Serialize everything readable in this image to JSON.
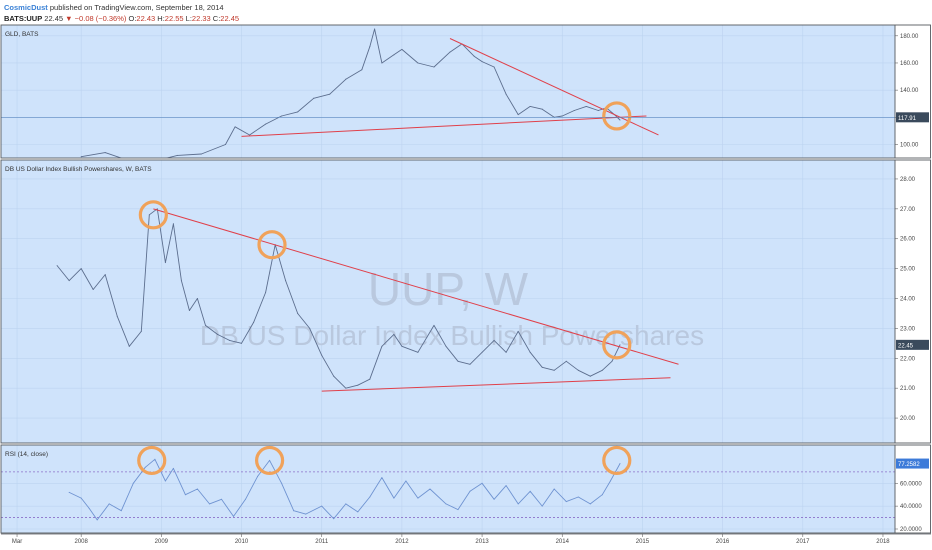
{
  "header": {
    "author": "CosmicDust",
    "published": "published on TradingView.com, September 18, 2014",
    "symbol": "BATS:UUP",
    "last": "22.45",
    "change": "▼ −0.08 (−0.36%)",
    "open_label": "O:",
    "open": "22.43",
    "high_label": "H:",
    "high": "22.55",
    "low_label": "L:",
    "low": "22.33",
    "close_label": "C:",
    "close": "22.45"
  },
  "watermark": {
    "symbol": "UUP, W",
    "name": "DB US Dollar Index Bullish Powershares"
  },
  "colors": {
    "background": "#cfe3fb",
    "series": "#5c6e8e",
    "trendline": "#e0404a",
    "circle": "#f0a25a",
    "rsi_line": "#6f93d1",
    "rsi_band": "#8b6fc9",
    "badge": "#3a4a5c",
    "rsi_badge": "#3d7bd9"
  },
  "chart_data": [
    {
      "type": "line",
      "pane": "GLD",
      "title": "GLD, BATS",
      "last_label": "117.91",
      "yticks": [
        100,
        120,
        140,
        160,
        180
      ],
      "ytick_labels": [
        "100.00",
        "120.00",
        "140.00",
        "160.00",
        "180.00"
      ],
      "ylim": [
        93,
        185
      ],
      "points": [
        [
          2008.0,
          91
        ],
        [
          2008.3,
          94
        ],
        [
          2008.6,
          88
        ],
        [
          2008.8,
          85
        ],
        [
          2009.0,
          89
        ],
        [
          2009.2,
          92
        ],
        [
          2009.5,
          93
        ],
        [
          2009.8,
          100
        ],
        [
          2009.92,
          113
        ],
        [
          2010.1,
          107
        ],
        [
          2010.3,
          115
        ],
        [
          2010.5,
          121
        ],
        [
          2010.7,
          124
        ],
        [
          2010.9,
          134
        ],
        [
          2011.1,
          137
        ],
        [
          2011.3,
          148
        ],
        [
          2011.5,
          155
        ],
        [
          2011.6,
          172
        ],
        [
          2011.66,
          185
        ],
        [
          2011.75,
          160
        ],
        [
          2011.9,
          166
        ],
        [
          2012.0,
          170
        ],
        [
          2012.2,
          160
        ],
        [
          2012.4,
          157
        ],
        [
          2012.6,
          168
        ],
        [
          2012.75,
          174
        ],
        [
          2012.9,
          165
        ],
        [
          2013.0,
          161
        ],
        [
          2013.15,
          157
        ],
        [
          2013.3,
          137
        ],
        [
          2013.45,
          122
        ],
        [
          2013.6,
          128
        ],
        [
          2013.75,
          126
        ],
        [
          2013.9,
          120
        ],
        [
          2014.0,
          121
        ],
        [
          2014.15,
          125
        ],
        [
          2014.3,
          128
        ],
        [
          2014.45,
          125
        ],
        [
          2014.55,
          127
        ],
        [
          2014.65,
          122
        ],
        [
          2014.72,
          118
        ]
      ],
      "trendlines": [
        {
          "x1": 2010.0,
          "y1": 106,
          "x2": 2015.05,
          "y2": 121
        },
        {
          "x1": 2012.6,
          "y1": 178,
          "x2": 2015.2,
          "y2": 107
        }
      ],
      "circles": [
        {
          "x": 2014.68,
          "y": 121
        }
      ]
    },
    {
      "type": "line",
      "pane": "UUP",
      "title": "DB US Dollar Index Bullish Powershares, W, BATS",
      "last_label": "22.45",
      "yticks": [
        20,
        21,
        22,
        23,
        24,
        25,
        26,
        27,
        28
      ],
      "ytick_labels": [
        "20.00",
        "21.00",
        "22.00",
        "23.00",
        "24.00",
        "25.00",
        "26.00",
        "27.00",
        "28.00"
      ],
      "ylim": [
        19.3,
        28.5
      ],
      "points": [
        [
          2007.7,
          25.1
        ],
        [
          2007.85,
          24.6
        ],
        [
          2008.0,
          25.0
        ],
        [
          2008.15,
          24.3
        ],
        [
          2008.3,
          24.8
        ],
        [
          2008.45,
          23.4
        ],
        [
          2008.6,
          22.4
        ],
        [
          2008.75,
          22.9
        ],
        [
          2008.85,
          26.8
        ],
        [
          2008.95,
          27.0
        ],
        [
          2009.05,
          25.2
        ],
        [
          2009.15,
          26.5
        ],
        [
          2009.25,
          24.6
        ],
        [
          2009.35,
          23.6
        ],
        [
          2009.45,
          24.0
        ],
        [
          2009.55,
          23.1
        ],
        [
          2009.7,
          22.8
        ],
        [
          2009.85,
          22.6
        ],
        [
          2010.0,
          22.5
        ],
        [
          2010.15,
          23.2
        ],
        [
          2010.3,
          24.2
        ],
        [
          2010.42,
          25.8
        ],
        [
          2010.55,
          24.6
        ],
        [
          2010.7,
          23.5
        ],
        [
          2010.85,
          23.0
        ],
        [
          2011.0,
          22.1
        ],
        [
          2011.15,
          21.4
        ],
        [
          2011.3,
          21.0
        ],
        [
          2011.45,
          21.1
        ],
        [
          2011.6,
          21.3
        ],
        [
          2011.75,
          22.4
        ],
        [
          2011.9,
          22.8
        ],
        [
          2012.0,
          22.4
        ],
        [
          2012.2,
          22.2
        ],
        [
          2012.4,
          23.1
        ],
        [
          2012.55,
          22.4
        ],
        [
          2012.7,
          21.9
        ],
        [
          2012.85,
          21.8
        ],
        [
          2013.0,
          22.2
        ],
        [
          2013.15,
          22.6
        ],
        [
          2013.3,
          22.2
        ],
        [
          2013.45,
          22.9
        ],
        [
          2013.6,
          22.2
        ],
        [
          2013.75,
          21.7
        ],
        [
          2013.9,
          21.6
        ],
        [
          2014.05,
          21.9
        ],
        [
          2014.2,
          21.6
        ],
        [
          2014.35,
          21.4
        ],
        [
          2014.5,
          21.6
        ],
        [
          2014.62,
          21.9
        ],
        [
          2014.72,
          22.45
        ]
      ],
      "trendlines": [
        {
          "x1": 2008.9,
          "y1": 27.0,
          "x2": 2015.45,
          "y2": 21.8
        },
        {
          "x1": 2011.0,
          "y1": 20.9,
          "x2": 2015.35,
          "y2": 21.35
        }
      ],
      "circles": [
        {
          "x": 2008.9,
          "y": 26.8
        },
        {
          "x": 2010.38,
          "y": 25.8
        },
        {
          "x": 2014.68,
          "y": 22.45
        }
      ]
    },
    {
      "type": "line",
      "pane": "RSI",
      "title": "RSI (14, close)",
      "last_label": "77.2582",
      "yticks": [
        20,
        40,
        60
      ],
      "ytick_labels": [
        "20.0000",
        "40.0000",
        "60.0000"
      ],
      "ylim": [
        20,
        90
      ],
      "bands": [
        70,
        30
      ],
      "points": [
        [
          2007.85,
          52
        ],
        [
          2008.0,
          47
        ],
        [
          2008.1,
          38
        ],
        [
          2008.2,
          28
        ],
        [
          2008.35,
          42
        ],
        [
          2008.5,
          36
        ],
        [
          2008.65,
          60
        ],
        [
          2008.8,
          74
        ],
        [
          2008.92,
          81
        ],
        [
          2009.05,
          62
        ],
        [
          2009.15,
          73
        ],
        [
          2009.3,
          50
        ],
        [
          2009.45,
          55
        ],
        [
          2009.6,
          42
        ],
        [
          2009.75,
          46
        ],
        [
          2009.9,
          31
        ],
        [
          2010.05,
          46
        ],
        [
          2010.2,
          66
        ],
        [
          2010.35,
          80
        ],
        [
          2010.5,
          60
        ],
        [
          2010.65,
          36
        ],
        [
          2010.8,
          33
        ],
        [
          2011.0,
          40
        ],
        [
          2011.15,
          29
        ],
        [
          2011.3,
          42
        ],
        [
          2011.45,
          35
        ],
        [
          2011.6,
          48
        ],
        [
          2011.75,
          65
        ],
        [
          2011.9,
          47
        ],
        [
          2012.05,
          62
        ],
        [
          2012.2,
          47
        ],
        [
          2012.35,
          55
        ],
        [
          2012.55,
          42
        ],
        [
          2012.7,
          37
        ],
        [
          2012.85,
          53
        ],
        [
          2013.0,
          60
        ],
        [
          2013.15,
          46
        ],
        [
          2013.3,
          58
        ],
        [
          2013.45,
          42
        ],
        [
          2013.6,
          53
        ],
        [
          2013.75,
          40
        ],
        [
          2013.9,
          55
        ],
        [
          2014.05,
          44
        ],
        [
          2014.2,
          48
        ],
        [
          2014.35,
          42
        ],
        [
          2014.5,
          50
        ],
        [
          2014.6,
          62
        ],
        [
          2014.72,
          77.26
        ]
      ],
      "circles": [
        {
          "x": 2008.88,
          "y": 80
        },
        {
          "x": 2010.35,
          "y": 80
        },
        {
          "x": 2014.68,
          "y": 80
        }
      ]
    }
  ],
  "x_axis": {
    "xlim": [
      2007.0,
      2018.15
    ],
    "ticks": [
      {
        "x": 2007.2,
        "label": "Mar"
      },
      {
        "x": 2008.0,
        "label": "2008"
      },
      {
        "x": 2009.0,
        "label": "2009"
      },
      {
        "x": 2010.0,
        "label": "2010"
      },
      {
        "x": 2011.0,
        "label": "2011"
      },
      {
        "x": 2012.0,
        "label": "2012"
      },
      {
        "x": 2013.0,
        "label": "2013"
      },
      {
        "x": 2014.0,
        "label": "2014"
      },
      {
        "x": 2015.0,
        "label": "2015"
      },
      {
        "x": 2016.0,
        "label": "2016"
      },
      {
        "x": 2017.0,
        "label": "2017"
      },
      {
        "x": 2018.0,
        "label": "2018"
      }
    ]
  }
}
